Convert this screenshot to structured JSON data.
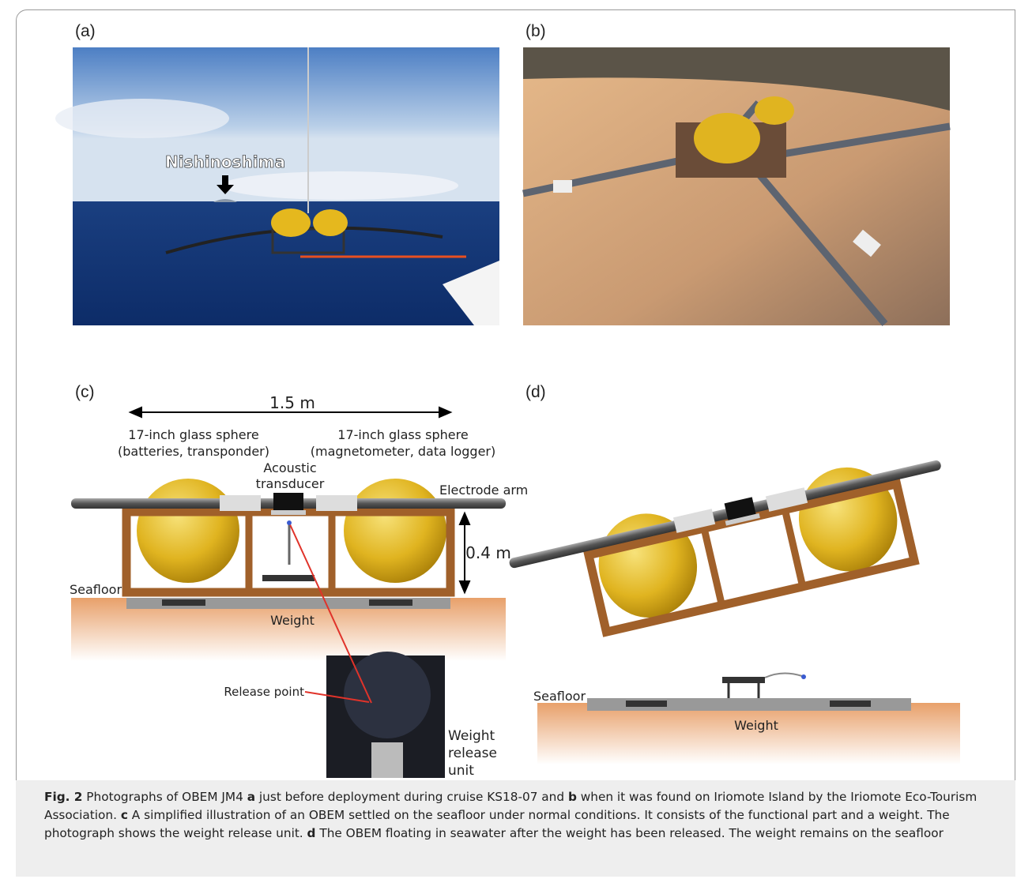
{
  "panels": {
    "a": {
      "label": "(a)",
      "annotation": "Nishinoshima"
    },
    "b": {
      "label": "(b)"
    },
    "c": {
      "label": "(c)",
      "width": "1.5 m",
      "sphere_left": [
        "17-inch glass sphere",
        "(batteries, transponder)"
      ],
      "sphere_right": [
        "17-inch glass sphere",
        "(magnetometer, data logger)"
      ],
      "transducer": [
        "Acoustic",
        "transducer"
      ],
      "arm": "Electrode arm",
      "height": "0.4 m",
      "seafloor": "Seafloor",
      "weight": "Weight",
      "release_point": "Release point",
      "release_unit": [
        "Weight",
        "release",
        "unit"
      ]
    },
    "d": {
      "label": "(d)",
      "seafloor": "Seafloor",
      "weight": "Weight"
    }
  },
  "caption": {
    "label": "Fig. 2",
    "segments": [
      " Photographs of OBEM JM4 ",
      "a",
      " just before deployment during cruise KS18-07 and ",
      "b",
      " when it was found on Iriomote Island by the Iriomote Eco-Tourism Association. ",
      "c",
      " A simplified illustration of an OBEM settled on the seafloor under normal conditions. It consists of the functional part and a weight. The photograph shows the weight release unit. ",
      "d",
      " The OBEM floating in seawater after the weight has been released. The weight remains on the seafloor"
    ]
  }
}
